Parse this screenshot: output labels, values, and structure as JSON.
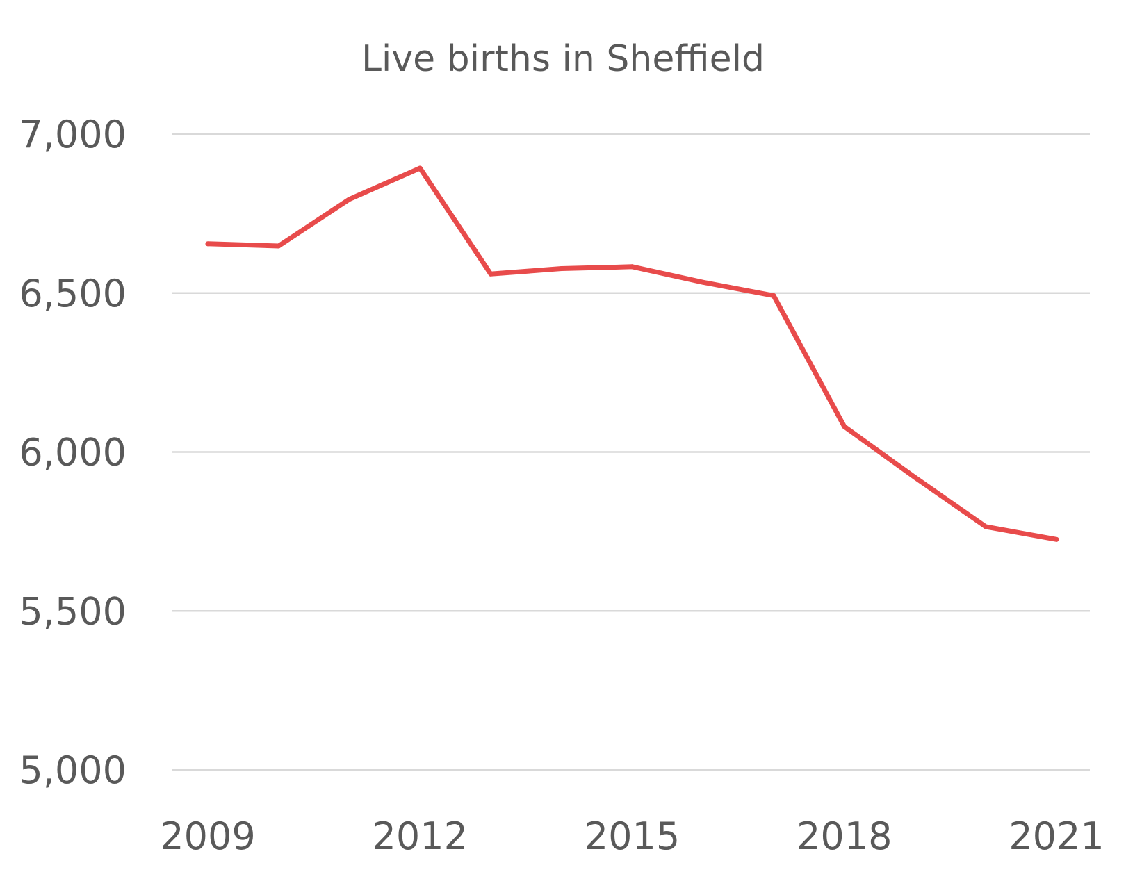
{
  "chart_data": {
    "type": "line",
    "title": "Live births in Sheffield",
    "xlabel": "",
    "ylabel": "",
    "ylim": [
      5000,
      7000
    ],
    "yticks": [
      5000,
      5500,
      6000,
      6500,
      7000
    ],
    "ytick_labels": [
      "5,000",
      "5,500",
      "6,000",
      "6,500",
      "7,000"
    ],
    "x": [
      2009,
      2010,
      2011,
      2012,
      2013,
      2014,
      2015,
      2016,
      2017,
      2018,
      2019,
      2020,
      2021
    ],
    "xtick_values": [
      2009,
      2012,
      2015,
      2018,
      2021
    ],
    "xtick_labels": [
      "2009",
      "2012",
      "2015",
      "2018",
      "2021"
    ],
    "grid": true,
    "legend": "none",
    "series": [
      {
        "name": "Live births",
        "color": "#e84b4b",
        "values": [
          6655,
          6648,
          6795,
          6893,
          6560,
          6577,
          6583,
          6534,
          6492,
          6080,
          5920,
          5765,
          5725
        ]
      }
    ]
  }
}
